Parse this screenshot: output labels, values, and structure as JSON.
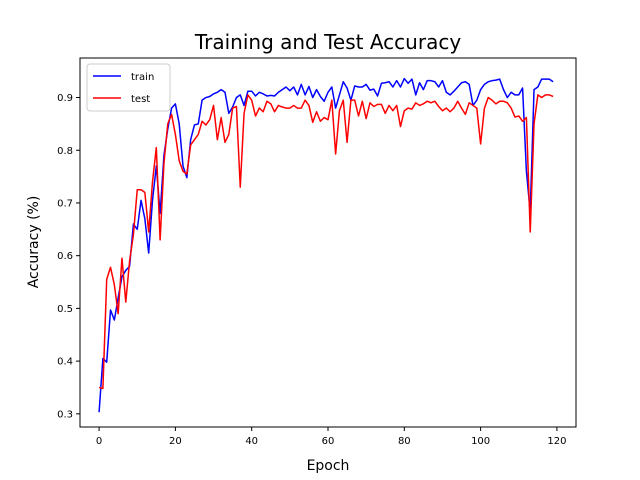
{
  "chart_data": {
    "type": "line",
    "title": "Training and Test Accuracy",
    "xlabel": "Epoch",
    "ylabel": "Accuracy (%)",
    "xlim": [
      -5,
      125
    ],
    "ylim": [
      0.275,
      0.975
    ],
    "xticks": [
      0,
      20,
      40,
      60,
      80,
      100,
      120
    ],
    "yticks": [
      0.3,
      0.4,
      0.5,
      0.6,
      0.7,
      0.8,
      0.9
    ],
    "grid": false,
    "legend_position": "top-left",
    "x": [
      0,
      1,
      2,
      3,
      4,
      5,
      6,
      7,
      8,
      9,
      10,
      11,
      12,
      13,
      14,
      15,
      16,
      17,
      18,
      19,
      20,
      21,
      22,
      23,
      24,
      25,
      26,
      27,
      28,
      29,
      30,
      31,
      32,
      33,
      34,
      35,
      36,
      37,
      38,
      39,
      40,
      41,
      42,
      43,
      44,
      45,
      46,
      47,
      48,
      49,
      50,
      51,
      52,
      53,
      54,
      55,
      56,
      57,
      58,
      59,
      60,
      61,
      62,
      63,
      64,
      65,
      66,
      67,
      68,
      69,
      70,
      71,
      72,
      73,
      74,
      75,
      76,
      77,
      78,
      79,
      80,
      81,
      82,
      83,
      84,
      85,
      86,
      87,
      88,
      89,
      90,
      91,
      92,
      93,
      94,
      95,
      96,
      97,
      98,
      99,
      100,
      101,
      102,
      103,
      104,
      105,
      106,
      107,
      108,
      109,
      110,
      111,
      112,
      113,
      114,
      115,
      116,
      117,
      118,
      119
    ],
    "series": [
      {
        "name": "train",
        "color": "#0000ff",
        "values": [
          0.303,
          0.405,
          0.398,
          0.497,
          0.478,
          0.52,
          0.56,
          0.572,
          0.58,
          0.66,
          0.65,
          0.705,
          0.67,
          0.605,
          0.705,
          0.77,
          0.68,
          0.79,
          0.84,
          0.88,
          0.888,
          0.85,
          0.77,
          0.748,
          0.82,
          0.848,
          0.85,
          0.895,
          0.9,
          0.902,
          0.907,
          0.91,
          0.915,
          0.91,
          0.87,
          0.882,
          0.9,
          0.905,
          0.885,
          0.912,
          0.912,
          0.903,
          0.91,
          0.907,
          0.903,
          0.904,
          0.903,
          0.91,
          0.915,
          0.92,
          0.913,
          0.92,
          0.905,
          0.925,
          0.905,
          0.921,
          0.9,
          0.915,
          0.902,
          0.893,
          0.91,
          0.92,
          0.88,
          0.905,
          0.93,
          0.918,
          0.895,
          0.922,
          0.92,
          0.92,
          0.925,
          0.914,
          0.916,
          0.903,
          0.927,
          0.928,
          0.93,
          0.92,
          0.932,
          0.92,
          0.936,
          0.927,
          0.935,
          0.905,
          0.928,
          0.915,
          0.932,
          0.932,
          0.93,
          0.92,
          0.932,
          0.91,
          0.905,
          0.912,
          0.92,
          0.928,
          0.93,
          0.925,
          0.885,
          0.895,
          0.915,
          0.925,
          0.93,
          0.932,
          0.933,
          0.935,
          0.915,
          0.9,
          0.91,
          0.905,
          0.905,
          0.918,
          0.76,
          0.683,
          0.915,
          0.92,
          0.935,
          0.935,
          0.935,
          0.93
        ]
      },
      {
        "name": "test",
        "color": "#ff0000",
        "values": [
          0.35,
          0.348,
          0.555,
          0.578,
          0.545,
          0.49,
          0.595,
          0.512,
          0.59,
          0.64,
          0.725,
          0.725,
          0.72,
          0.645,
          0.74,
          0.805,
          0.63,
          0.775,
          0.85,
          0.868,
          0.83,
          0.78,
          0.76,
          0.755,
          0.81,
          0.82,
          0.83,
          0.855,
          0.848,
          0.858,
          0.885,
          0.82,
          0.862,
          0.815,
          0.83,
          0.88,
          0.883,
          0.73,
          0.87,
          0.905,
          0.895,
          0.865,
          0.88,
          0.873,
          0.893,
          0.888,
          0.873,
          0.885,
          0.882,
          0.88,
          0.88,
          0.885,
          0.88,
          0.88,
          0.895,
          0.885,
          0.853,
          0.873,
          0.855,
          0.862,
          0.858,
          0.895,
          0.793,
          0.875,
          0.895,
          0.815,
          0.895,
          0.895,
          0.865,
          0.893,
          0.86,
          0.89,
          0.883,
          0.887,
          0.887,
          0.87,
          0.885,
          0.875,
          0.885,
          0.845,
          0.875,
          0.88,
          0.878,
          0.89,
          0.885,
          0.888,
          0.893,
          0.89,
          0.893,
          0.883,
          0.875,
          0.88,
          0.873,
          0.88,
          0.893,
          0.88,
          0.868,
          0.89,
          0.885,
          0.88,
          0.812,
          0.88,
          0.9,
          0.895,
          0.888,
          0.893,
          0.893,
          0.89,
          0.88,
          0.863,
          0.865,
          0.855,
          0.862,
          0.645,
          0.85,
          0.905,
          0.9,
          0.905,
          0.905,
          0.902
        ]
      }
    ]
  }
}
